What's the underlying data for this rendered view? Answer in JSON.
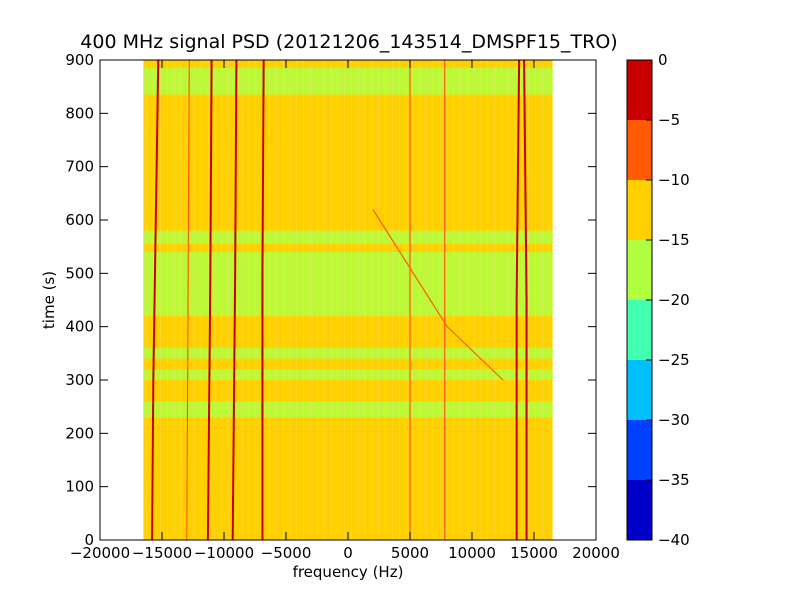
{
  "chart_data": {
    "type": "heatmap",
    "title": "400 MHz signal PSD (20121206_143514_DMSPF15_TRO)",
    "xlabel": "frequency (Hz)",
    "ylabel": "time (s)",
    "xlim": [
      -20000,
      20000
    ],
    "ylim": [
      0,
      900
    ],
    "xticks": [
      -20000,
      -15000,
      -10000,
      -5000,
      0,
      5000,
      10000,
      15000,
      20000
    ],
    "xtick_labels": [
      "−20000",
      "−15000",
      "−10000",
      "−5000",
      "0",
      "5000",
      "10000",
      "15000",
      "20000"
    ],
    "yticks": [
      0,
      100,
      200,
      300,
      400,
      500,
      600,
      700,
      800,
      900
    ],
    "ytick_labels": [
      "0",
      "100",
      "200",
      "300",
      "400",
      "500",
      "600",
      "700",
      "800",
      "900"
    ],
    "data_extent_x": [
      -16500,
      16500
    ],
    "background_level": -12.5,
    "colorbar": {
      "range": [
        -40,
        0
      ],
      "levels": [
        -40,
        -35,
        -30,
        -25,
        -20,
        -15,
        -10,
        -5,
        0
      ],
      "tick_labels": [
        "−40",
        "−35",
        "−30",
        "−25",
        "−20",
        "−15",
        "−10",
        "−5",
        "0"
      ],
      "colors": [
        "#0000c8",
        "#0040ff",
        "#00c0ff",
        "#40ffb0",
        "#b0ff40",
        "#ffd000",
        "#ff5a00",
        "#c80000"
      ]
    },
    "green_bands_time": [
      [
        420,
        540
      ],
      [
        555,
        580
      ],
      [
        835,
        885
      ],
      [
        340,
        360
      ],
      [
        300,
        320
      ],
      [
        230,
        260
      ]
    ],
    "signal_lines": [
      {
        "points": [
          [
            -15300,
            900
          ],
          [
            -15500,
            600
          ],
          [
            -15700,
            300
          ],
          [
            -15800,
            0
          ]
        ],
        "level": -2.5
      },
      {
        "points": [
          [
            -11000,
            900
          ],
          [
            -11100,
            500
          ],
          [
            -11300,
            0
          ]
        ],
        "level": -2.5
      },
      {
        "points": [
          [
            -9000,
            900
          ],
          [
            -9100,
            500
          ],
          [
            -9300,
            0
          ]
        ],
        "level": -2.5
      },
      {
        "points": [
          [
            -6800,
            900
          ],
          [
            -6900,
            500
          ],
          [
            -6900,
            0
          ]
        ],
        "level": -2.5
      },
      {
        "points": [
          [
            -12800,
            900
          ],
          [
            -13000,
            0
          ]
        ],
        "level": -7.5
      },
      {
        "points": [
          [
            13800,
            900
          ],
          [
            13600,
            450
          ],
          [
            13600,
            0
          ]
        ],
        "level": -2.5
      },
      {
        "points": [
          [
            14200,
            900
          ],
          [
            14400,
            450
          ],
          [
            14400,
            0
          ]
        ],
        "level": -2.5
      },
      {
        "points": [
          [
            2000,
            620
          ],
          [
            8000,
            400
          ],
          [
            12500,
            300
          ]
        ],
        "level": -7.5
      },
      {
        "points": [
          [
            5000,
            900
          ],
          [
            5000,
            0
          ]
        ],
        "level": -7.5
      },
      {
        "points": [
          [
            7800,
            900
          ],
          [
            7800,
            0
          ]
        ],
        "level": -7.5
      }
    ]
  }
}
